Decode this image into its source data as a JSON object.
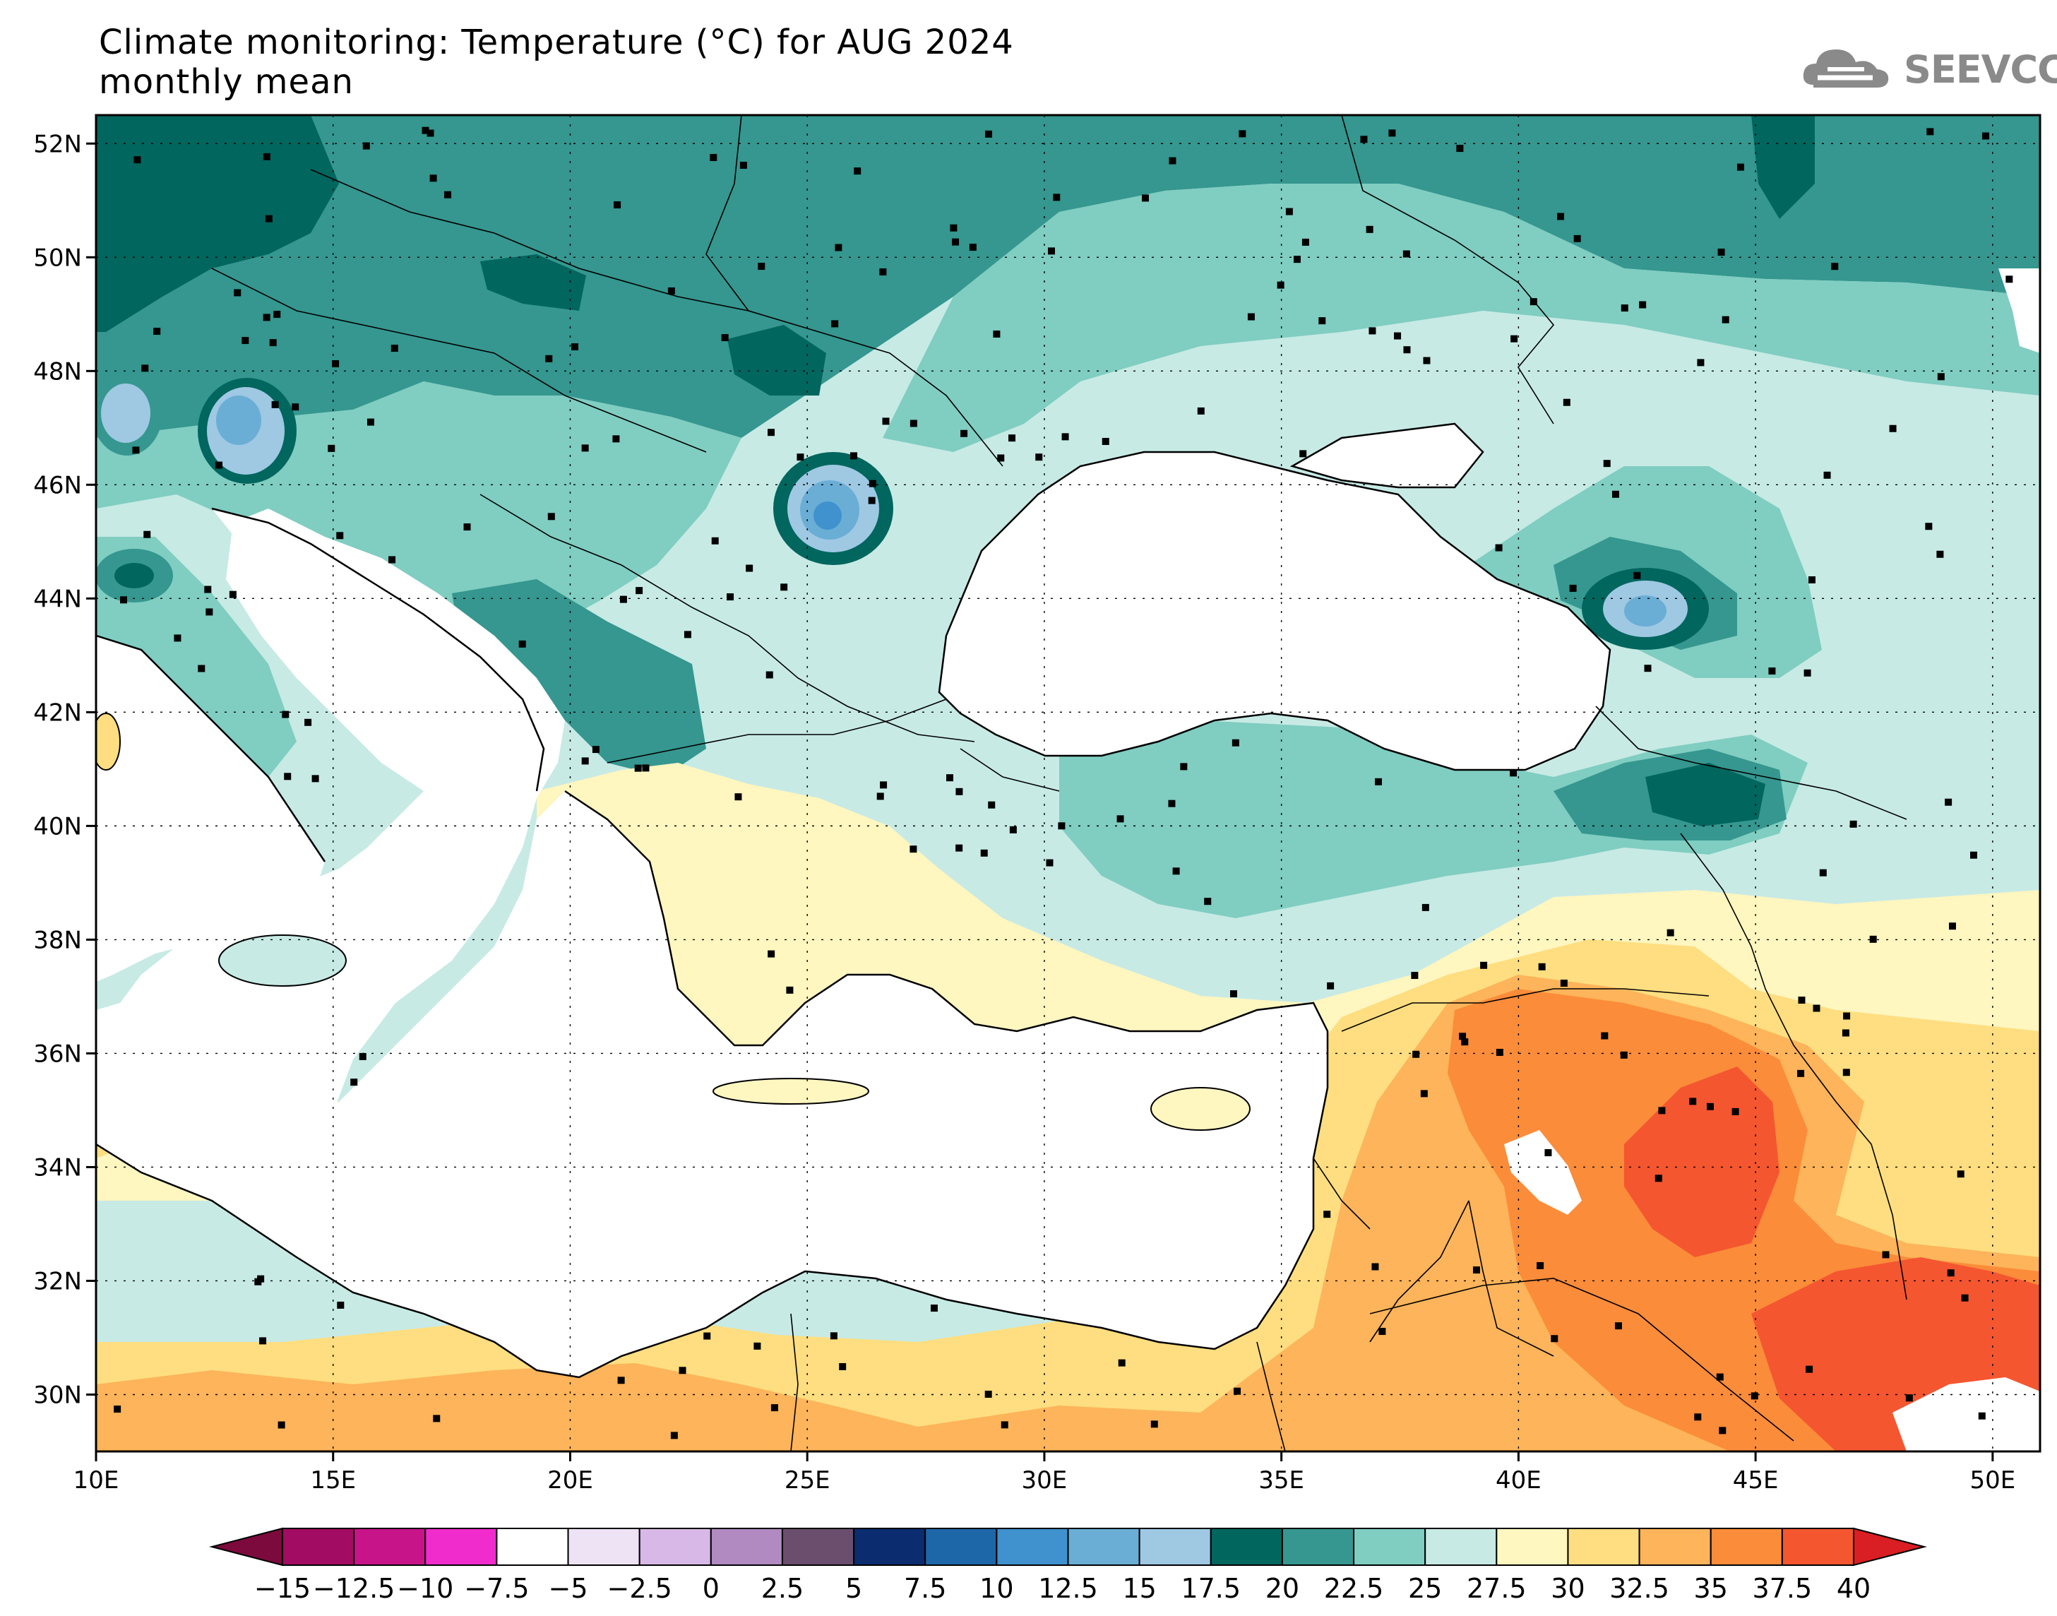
{
  "header": {
    "title_line1": "Climate monitoring: Temperature (°C) for AUG 2024",
    "title_line2": "monthly mean"
  },
  "logo": {
    "text": "SEEVCCC",
    "icon": "cloud-logo-icon"
  },
  "axes": {
    "lat_labels": [
      "52N",
      "50N",
      "48N",
      "46N",
      "44N",
      "42N",
      "40N",
      "38N",
      "36N",
      "34N",
      "32N",
      "30N"
    ],
    "lat_values": [
      52,
      50,
      48,
      46,
      44,
      42,
      40,
      38,
      36,
      34,
      32,
      30
    ],
    "lon_labels": [
      "10E",
      "15E",
      "20E",
      "25E",
      "30E",
      "35E",
      "40E",
      "45E",
      "50E"
    ],
    "lon_values": [
      10,
      15,
      20,
      25,
      30,
      35,
      40,
      45,
      50
    ],
    "lon_range": [
      10,
      51
    ],
    "lat_range": [
      29,
      52.5
    ]
  },
  "colorbar": {
    "labels": [
      "−15",
      "−12.5",
      "−10",
      "−7.5",
      "−5",
      "−2.5",
      "0",
      "2.5",
      "5",
      "7.5",
      "10",
      "12.5",
      "15",
      "17.5",
      "20",
      "22.5",
      "25",
      "27.5",
      "30",
      "32.5",
      "35",
      "37.5",
      "40"
    ],
    "colors": [
      "#7d0a3d",
      "#a20c62",
      "#c81489",
      "#f02ccd",
      "#ffffff",
      "#eee2f5",
      "#d8b8e6",
      "#b08ac0",
      "#6b4e6e",
      "#0b2c6e",
      "#1d67a8",
      "#3f92cd",
      "#6aaed6",
      "#9fc8e3",
      "#01665e",
      "#35978f",
      "#80cdc1",
      "#c7eae5",
      "#fff6c0",
      "#fede80",
      "#fdb45a",
      "#fb8c3a",
      "#f45630",
      "#d91e24"
    ],
    "under_color": "#7d0a3d",
    "over_color": "#d91e24"
  },
  "colors": {
    "land_default": "#c7eae5",
    "sea": "#ffffff",
    "station": "#000000"
  }
}
